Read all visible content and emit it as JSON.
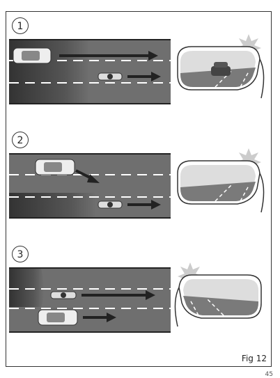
{
  "panels": [
    {
      "number": "1"
    },
    {
      "number": "2"
    },
    {
      "number": "3"
    }
  ],
  "figure_label": "Fig 12",
  "page_number": "45",
  "colors": {
    "road": "#6f6f6f",
    "road_dark": "#444444",
    "lane_mark": "#ffffff",
    "arrow": "#2b2b2b",
    "mirror_frame": "#ffffff",
    "alert_star": "#bbbbbb"
  }
}
